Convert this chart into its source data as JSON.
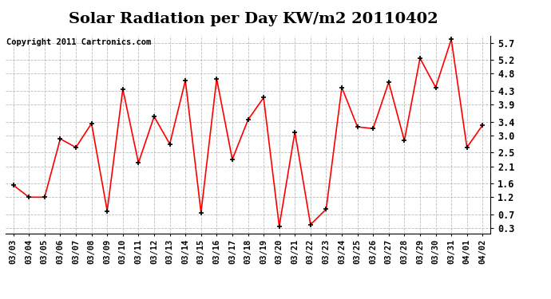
{
  "title": "Solar Radiation per Day KW/m2 20110402",
  "copyright": "Copyright 2011 Cartronics.com",
  "dates": [
    "03/03",
    "03/04",
    "03/05",
    "03/06",
    "03/07",
    "03/08",
    "03/09",
    "03/10",
    "03/11",
    "03/12",
    "03/13",
    "03/14",
    "03/15",
    "03/16",
    "03/17",
    "03/18",
    "03/19",
    "03/20",
    "03/21",
    "03/22",
    "03/23",
    "03/24",
    "03/25",
    "03/26",
    "03/27",
    "03/28",
    "03/29",
    "03/30",
    "03/31",
    "04/01",
    "04/02"
  ],
  "values": [
    1.55,
    1.2,
    1.2,
    2.9,
    2.65,
    3.35,
    0.8,
    4.35,
    2.2,
    3.55,
    2.75,
    4.6,
    0.75,
    4.65,
    2.3,
    3.45,
    4.1,
    0.35,
    3.1,
    0.4,
    0.85,
    4.4,
    3.25,
    3.2,
    4.55,
    2.85,
    5.25,
    4.4,
    5.8,
    2.65,
    3.3
  ],
  "line_color": "#ff0000",
  "marker": "+",
  "marker_color": "#000000",
  "bg_color": "#ffffff",
  "grid_color": "#bbbbbb",
  "ytick_labels": [
    "0.3",
    "0.7",
    "1.2",
    "1.6",
    "2.1",
    "2.5",
    "3.0",
    "3.4",
    "3.9",
    "4.3",
    "4.8",
    "5.2",
    "5.7"
  ],
  "ytick_values": [
    0.3,
    0.7,
    1.2,
    1.6,
    2.1,
    2.5,
    3.0,
    3.4,
    3.9,
    4.3,
    4.8,
    5.2,
    5.7
  ],
  "ylim": [
    0.15,
    5.9
  ],
  "title_fontsize": 14,
  "copyright_fontsize": 7.5,
  "tick_fontsize": 7.5
}
